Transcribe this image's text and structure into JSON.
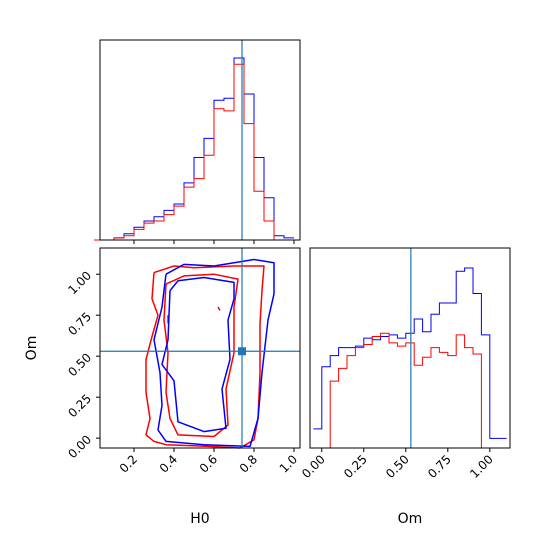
{
  "chart_data": {
    "type": "corner",
    "parameters": [
      "H0",
      "Om"
    ],
    "truths": {
      "H0": 0.74,
      "Om": 0.53
    },
    "colors": {
      "series_a": "#0000ff",
      "series_b": "#ff0000",
      "truth": "#1f77b4"
    },
    "grid": false,
    "legend": "none",
    "panels": {
      "h0_hist": {
        "xlim": [
          0.03,
          1.03
        ],
        "bin_edges": [
          0.0,
          0.05,
          0.1,
          0.15,
          0.2,
          0.25,
          0.3,
          0.35,
          0.4,
          0.45,
          0.5,
          0.55,
          0.6,
          0.65,
          0.7,
          0.75,
          0.8,
          0.85,
          0.9,
          0.95,
          1.0
        ],
        "series": [
          {
            "color": "blue",
            "counts": [
              0,
              0,
              1,
              3,
              6,
              9,
              11,
              14,
              17,
              27,
              39,
              48,
              66,
              67,
              86,
              69,
              39,
              20,
              2,
              1
            ]
          },
          {
            "color": "red",
            "counts": [
              0,
              0,
              1,
              2,
              5,
              8,
              9,
              12,
              16,
              25,
              29,
              40,
              62,
              61,
              83,
              55,
              23,
              9,
              0,
              0
            ]
          }
        ]
      },
      "om_hist": {
        "xlim": [
          -0.07,
          1.12
        ],
        "bin_edges": [
          -0.05,
          0.0,
          0.05,
          0.1,
          0.15,
          0.2,
          0.25,
          0.3,
          0.35,
          0.4,
          0.45,
          0.5,
          0.55,
          0.6,
          0.65,
          0.7,
          0.75,
          0.8,
          0.85,
          0.9,
          0.95,
          1.0,
          1.05,
          1.1
        ],
        "series": [
          {
            "color": "blue",
            "counts": [
              12,
              51,
              58,
              63,
              63,
              64,
              69,
              68,
              70,
              71,
              69,
              72,
              81,
              73,
              84,
              91,
              91,
              111,
              113,
              97,
              71,
              6,
              6
            ]
          },
          {
            "color": "red",
            "counts": [
              0,
              0,
              42,
              50,
              58,
              63,
              65,
              70,
              72,
              66,
              64,
              66,
              52,
              57,
              63,
              60,
              58,
              71,
              63,
              59,
              0,
              0,
              0
            ]
          }
        ]
      },
      "scatter_2d": {
        "xlabel": "H0",
        "ylabel": "Om",
        "xlim": [
          0.03,
          1.03
        ],
        "ylim": [
          -0.06,
          1.16
        ],
        "xticks": [
          "0.2",
          "0.4",
          "0.6",
          "0.8",
          "1.0"
        ],
        "yticks": [
          "0.00",
          "0.25",
          "0.50",
          "0.75",
          "1.00"
        ],
        "contours": [
          {
            "color": "red",
            "points": [
              [
                0.3,
                1.01
              ],
              [
                0.29,
                0.85
              ],
              [
                0.32,
                0.75
              ],
              [
                0.29,
                0.62
              ],
              [
                0.26,
                0.48
              ],
              [
                0.26,
                0.28
              ],
              [
                0.28,
                0.12
              ],
              [
                0.26,
                0.02
              ],
              [
                0.3,
                -0.02
              ],
              [
                0.36,
                -0.04
              ],
              [
                0.58,
                -0.05
              ],
              [
                0.73,
                -0.06
              ],
              [
                0.8,
                -0.01
              ],
              [
                0.82,
                0.12
              ],
              [
                0.83,
                0.4
              ],
              [
                0.83,
                0.7
              ],
              [
                0.84,
                0.9
              ],
              [
                0.85,
                1.05
              ],
              [
                0.7,
                1.05
              ],
              [
                0.5,
                1.04
              ],
              [
                0.4,
                1.05
              ],
              [
                0.3,
                1.01
              ]
            ]
          },
          {
            "color": "red",
            "points": [
              [
                0.36,
                0.94
              ],
              [
                0.35,
                0.72
              ],
              [
                0.37,
                0.52
              ],
              [
                0.36,
                0.28
              ],
              [
                0.38,
                0.12
              ],
              [
                0.42,
                0.02
              ],
              [
                0.6,
                0.01
              ],
              [
                0.67,
                0.08
              ],
              [
                0.66,
                0.3
              ],
              [
                0.7,
                0.52
              ],
              [
                0.7,
                0.8
              ],
              [
                0.72,
                0.97
              ],
              [
                0.6,
                1.0
              ],
              [
                0.45,
                0.99
              ],
              [
                0.36,
                0.94
              ]
            ]
          },
          {
            "color": "red",
            "points": [
              [
                0.62,
                0.8
              ],
              [
                0.63,
                0.78
              ]
            ]
          },
          {
            "color": "red",
            "points": [
              [
                0.37,
                0.7
              ],
              [
                0.37,
                0.75
              ]
            ]
          },
          {
            "color": "blue",
            "points": [
              [
                0.36,
                1.0
              ],
              [
                0.34,
                0.8
              ],
              [
                0.3,
                0.6
              ],
              [
                0.33,
                0.4
              ],
              [
                0.34,
                0.2
              ],
              [
                0.32,
                0.05
              ],
              [
                0.36,
                -0.02
              ],
              [
                0.55,
                -0.04
              ],
              [
                0.78,
                -0.05
              ],
              [
                0.82,
                0.12
              ],
              [
                0.84,
                0.4
              ],
              [
                0.87,
                0.72
              ],
              [
                0.9,
                0.88
              ],
              [
                0.9,
                1.07
              ],
              [
                0.8,
                1.09
              ],
              [
                0.6,
                1.05
              ],
              [
                0.45,
                1.06
              ],
              [
                0.36,
                1.0
              ]
            ]
          },
          {
            "color": "blue",
            "points": [
              [
                0.38,
                0.9
              ],
              [
                0.37,
                0.6
              ],
              [
                0.34,
                0.45
              ],
              [
                0.4,
                0.35
              ],
              [
                0.42,
                0.1
              ],
              [
                0.55,
                0.04
              ],
              [
                0.66,
                0.06
              ],
              [
                0.64,
                0.3
              ],
              [
                0.68,
                0.48
              ],
              [
                0.67,
                0.72
              ],
              [
                0.7,
                0.85
              ],
              [
                0.7,
                0.95
              ],
              [
                0.55,
                0.98
              ],
              [
                0.42,
                0.96
              ],
              [
                0.38,
                0.9
              ]
            ]
          }
        ]
      }
    }
  }
}
